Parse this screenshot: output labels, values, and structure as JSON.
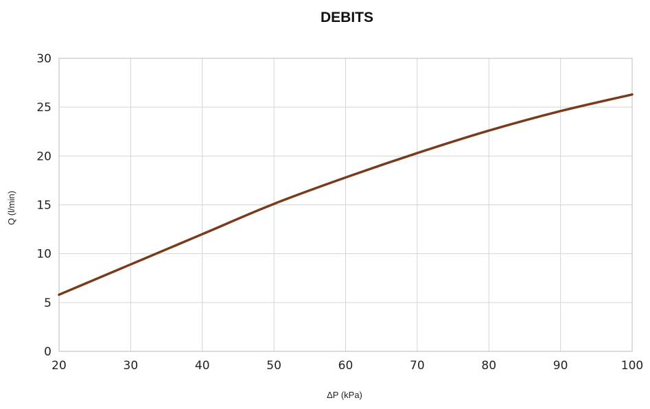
{
  "chart_data": {
    "type": "line",
    "title": "DEBITS",
    "xlabel": "ΔP (kPa)",
    "ylabel": "Q (l/min)",
    "xlim": [
      20,
      100
    ],
    "ylim": [
      0,
      30
    ],
    "xticks": [
      20,
      30,
      40,
      50,
      60,
      70,
      80,
      90,
      100
    ],
    "yticks": [
      0,
      5,
      10,
      15,
      20,
      25,
      30
    ],
    "xtick_labels": [
      "20",
      "30",
      "40",
      "50",
      "60",
      "70",
      "80",
      "90",
      "100"
    ],
    "ytick_labels": [
      "0",
      "5",
      "10",
      "15",
      "20",
      "25",
      "30"
    ],
    "grid": true,
    "series": [
      {
        "color": "#7a3a1c",
        "x": [
          20,
          30,
          40,
          50,
          60,
          70,
          80,
          90,
          100
        ],
        "y": [
          5.8,
          8.9,
          12.0,
          15.1,
          17.8,
          20.3,
          22.6,
          24.6,
          26.3
        ]
      }
    ]
  }
}
